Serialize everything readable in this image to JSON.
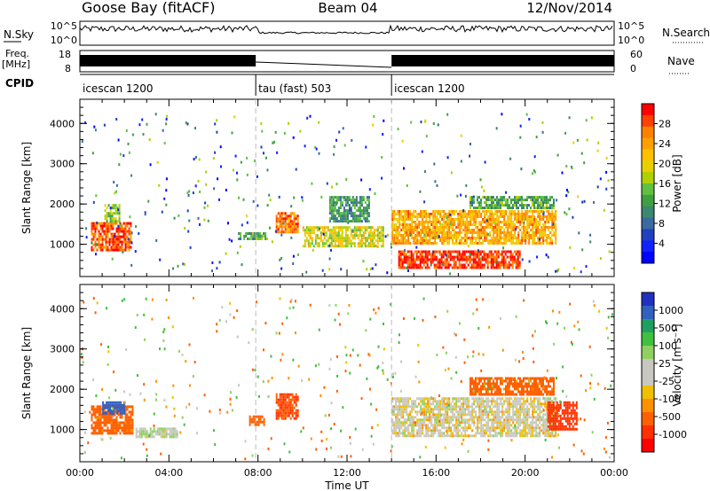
{
  "header": {
    "station": "Goose Bay (fitACF)",
    "beam": "Beam 04",
    "date": "12/Nov/2014"
  },
  "strips": {
    "nsky_label": "N.Sky",
    "nsky_ticks": [
      "10^5",
      "10^0"
    ],
    "nsearch_label": "N.Search",
    "nsearch_ticks": [
      "10^5",
      "10^0"
    ],
    "freq_label": "Freq.",
    "freq_unit": "[MHz]",
    "freq_ticks": [
      "18",
      "8"
    ],
    "nave_label": "Nave",
    "nave_ticks": [
      "60",
      "0"
    ],
    "cpid_label": "CPID",
    "cpid_segments": [
      {
        "label": "icescan 1200",
        "start": 0,
        "end": 7.9
      },
      {
        "label": "tau (fast) 503",
        "start": 7.9,
        "end": 14.0
      },
      {
        "label": "icescan 1200",
        "start": 14.0,
        "end": 24
      }
    ]
  },
  "colorbars": {
    "power": {
      "title": "Power [dB]",
      "ticks": [
        "28",
        "24",
        "20",
        "16",
        "12",
        "8",
        "4"
      ],
      "colors": [
        "#ff0000",
        "#ff4000",
        "#ff8000",
        "#ffa000",
        "#ffc000",
        "#e8d000",
        "#b0d000",
        "#60c040",
        "#40a040",
        "#3a8870",
        "#3a6aa0",
        "#2040c0",
        "#1020ff",
        "#0000ff"
      ]
    },
    "velocity": {
      "title": "Velocity [m s⁻¹]",
      "ticks": [
        "1000",
        "500",
        "100",
        "25",
        "-25",
        "-100",
        "-500",
        "-1000"
      ],
      "colors": [
        "#2030c0",
        "#3060c0",
        "#20a060",
        "#40c040",
        "#90d060",
        "#c8c8c0",
        "#c8c8c0",
        "#f0c000",
        "#ff9000",
        "#ff6000",
        "#ff3000",
        "#ff0000"
      ]
    }
  },
  "chart_data": [
    {
      "type": "heatmap",
      "name": "power",
      "ylabel": "Slant Range [km]",
      "xlabel": "Time UT",
      "xlim": [
        0,
        24
      ],
      "ylim": [
        200,
        4600
      ],
      "x_ticks": [
        "00:00",
        "04:00",
        "08:00",
        "12:00",
        "16:00",
        "20:00",
        "00:00"
      ],
      "y_ticks": [
        "1000",
        "2000",
        "3000",
        "4000"
      ],
      "regions": [
        {
          "t0": 0.5,
          "t1": 2.3,
          "r0": 850,
          "r1": 1550,
          "level": 0.9
        },
        {
          "t0": 1.1,
          "t1": 1.8,
          "r0": 1600,
          "r1": 2000,
          "level": 0.5
        },
        {
          "t0": 7.1,
          "t1": 8.4,
          "r0": 1150,
          "r1": 1300,
          "level": 0.4
        },
        {
          "t0": 8.8,
          "t1": 9.8,
          "r0": 1300,
          "r1": 1800,
          "level": 0.85
        },
        {
          "t0": 10.0,
          "t1": 13.6,
          "r0": 950,
          "r1": 1450,
          "level": 0.6
        },
        {
          "t0": 11.2,
          "t1": 13.0,
          "r0": 1550,
          "r1": 2200,
          "level": 0.35
        },
        {
          "t0": 14.0,
          "t1": 21.4,
          "r0": 1000,
          "r1": 1850,
          "level": 0.75
        },
        {
          "t0": 14.3,
          "t1": 19.8,
          "r0": 450,
          "r1": 850,
          "level": 0.95
        },
        {
          "t0": 17.5,
          "t1": 21.3,
          "r0": 1900,
          "r1": 2200,
          "level": 0.4
        }
      ]
    },
    {
      "type": "heatmap",
      "name": "velocity",
      "ylabel": "Slant Range [km]",
      "xlabel": "Time UT",
      "xlim": [
        0,
        24
      ],
      "ylim": [
        200,
        4600
      ],
      "x_ticks": [
        "00:00",
        "04:00",
        "08:00",
        "12:00",
        "16:00",
        "20:00",
        "00:00"
      ],
      "y_ticks": [
        "1000",
        "2000",
        "3000",
        "4000"
      ],
      "regions": [
        {
          "t0": 0.5,
          "t1": 2.4,
          "r0": 900,
          "r1": 1600,
          "vel": -150
        },
        {
          "t0": 1.0,
          "t1": 2.0,
          "r0": 1400,
          "r1": 1700,
          "vel": 600
        },
        {
          "t0": 2.5,
          "t1": 4.4,
          "r0": 850,
          "r1": 1050,
          "vel": 30
        },
        {
          "t0": 8.8,
          "t1": 9.8,
          "r0": 1300,
          "r1": 1900,
          "vel": -300
        },
        {
          "t0": 7.6,
          "t1": 8.3,
          "r0": 1150,
          "r1": 1350,
          "vel": -200
        },
        {
          "t0": 14.0,
          "t1": 21.4,
          "r0": 850,
          "r1": 1800,
          "vel": 0
        },
        {
          "t0": 17.5,
          "t1": 21.3,
          "r0": 1900,
          "r1": 2300,
          "vel": -150
        },
        {
          "t0": 21.0,
          "t1": 22.3,
          "r0": 1000,
          "r1": 1700,
          "vel": -400
        }
      ]
    }
  ]
}
